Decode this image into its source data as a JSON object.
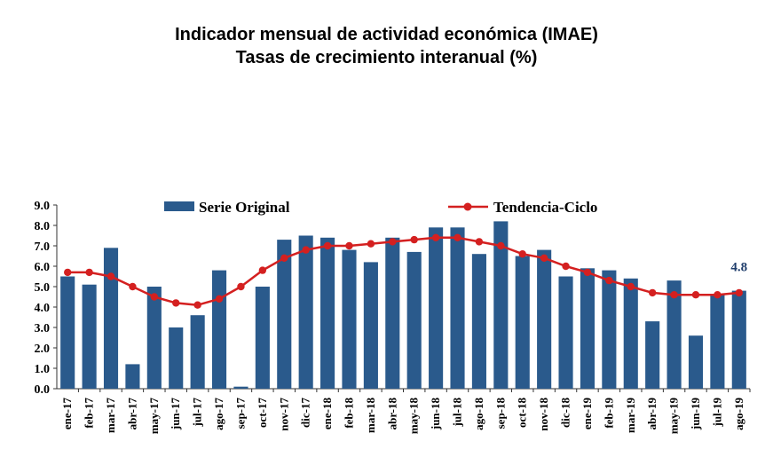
{
  "title": "Indicador mensual de actividad económica (IMAE)",
  "subtitle": "Tasas de crecimiento interanual (%)",
  "chart_data": {
    "type": "bar",
    "title": "Indicador mensual de actividad económica (IMAE)",
    "subtitle": "Tasas de crecimiento interanual (%)",
    "xlabel": "",
    "ylabel": "",
    "ylim": [
      0,
      9
    ],
    "yticks": [
      "0.0",
      "1.0",
      "2.0",
      "3.0",
      "4.0",
      "5.0",
      "6.0",
      "7.0",
      "8.0",
      "9.0"
    ],
    "grid": false,
    "legend_position": "top",
    "categories": [
      "ene-17",
      "feb-17",
      "mar-17",
      "abr-17",
      "may-17",
      "jun-17",
      "jul-17",
      "ago-17",
      "sep-17",
      "oct-17",
      "nov-17",
      "dic-17",
      "ene-18",
      "feb-18",
      "mar-18",
      "abr-18",
      "may-18",
      "jun-18",
      "jul-18",
      "ago-18",
      "sep-18",
      "oct-18",
      "nov-18",
      "dic-18",
      "ene-19",
      "feb-19",
      "mar-19",
      "abr-19",
      "may-19",
      "jun-19",
      "jul-19",
      "ago-19"
    ],
    "series": [
      {
        "name": "Serie Original",
        "type": "bar",
        "color": "#2a5a8c",
        "values": [
          5.5,
          5.1,
          6.9,
          1.2,
          5.0,
          3.0,
          3.6,
          5.8,
          0.1,
          5.0,
          7.3,
          7.5,
          7.4,
          6.8,
          6.2,
          7.4,
          6.7,
          7.9,
          7.9,
          6.6,
          8.2,
          6.5,
          6.8,
          5.5,
          5.9,
          5.8,
          5.4,
          3.3,
          5.3,
          2.6,
          4.6,
          4.8
        ]
      },
      {
        "name": "Tendencia-Ciclo",
        "type": "line",
        "color": "#d42020",
        "values": [
          5.7,
          5.7,
          5.5,
          5.0,
          4.5,
          4.2,
          4.1,
          4.4,
          5.0,
          5.8,
          6.4,
          6.8,
          7.0,
          7.0,
          7.1,
          7.2,
          7.3,
          7.4,
          7.4,
          7.2,
          7.0,
          6.6,
          6.4,
          6.0,
          5.7,
          5.3,
          5.0,
          4.7,
          4.6,
          4.6,
          4.6,
          4.7
        ]
      }
    ],
    "annotations": [
      {
        "label": "4.8"
      }
    ]
  }
}
